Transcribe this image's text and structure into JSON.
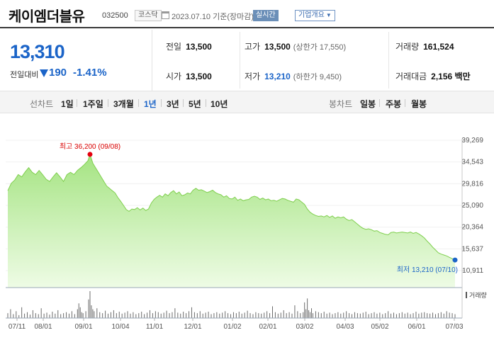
{
  "header": {
    "stock_name": "케이엠더블유",
    "stock_code": "032500",
    "market": "코스닥",
    "date_info": "2023.07.10 기준(장마감)",
    "realtime_label": "실시간",
    "company_info_label": "기업개요"
  },
  "price": {
    "current": "13,310",
    "change_label": "전일대비",
    "change_value": "190",
    "change_pct": "-1.41%",
    "direction": "down",
    "color": "#1b64c8"
  },
  "stats": {
    "prev_close": {
      "label": "전일",
      "value": "13,500"
    },
    "high": {
      "label": "고가",
      "value": "13,500",
      "limit": "(상한가 17,550)"
    },
    "volume": {
      "label": "거래량",
      "value": "161,524"
    },
    "open": {
      "label": "시가",
      "value": "13,500"
    },
    "low": {
      "label": "저가",
      "value": "13,210",
      "limit": "(하한가 9,450)"
    },
    "amount": {
      "label": "거래대금",
      "value": "2,156 백만"
    }
  },
  "tabs": {
    "line_label": "선차트",
    "line_periods": [
      "1일",
      "1주일",
      "3개월",
      "1년",
      "3년",
      "5년",
      "10년"
    ],
    "active_period": "1년",
    "candle_label": "봉차트",
    "candle_periods": [
      "일봉",
      "주봉",
      "월봉"
    ]
  },
  "chart_data": {
    "type": "area",
    "x_ticks": [
      "07/11",
      "08/01",
      "09/01",
      "10/04",
      "11/01",
      "12/01",
      "01/02",
      "02/01",
      "03/02",
      "04/03",
      "05/02",
      "06/01",
      "07/03"
    ],
    "y_ticks": [
      "39,269",
      "34,543",
      "29,816",
      "25,090",
      "20,364",
      "15,637",
      "10,911"
    ],
    "ylim": [
      10911,
      39269
    ],
    "max_annotation": "최고 36,200 (09/08)",
    "min_annotation": "최저 13,210 (07/10)",
    "max_value": 36200,
    "min_value": 13210,
    "volume_label": "거래량",
    "price_series": [
      [
        0,
        28300
      ],
      [
        5,
        29900
      ],
      [
        10,
        30600
      ],
      [
        15,
        31800
      ],
      [
        20,
        31300
      ],
      [
        25,
        32400
      ],
      [
        30,
        33300
      ],
      [
        35,
        32300
      ],
      [
        40,
        31800
      ],
      [
        45,
        32700
      ],
      [
        50,
        31800
      ],
      [
        55,
        30800
      ],
      [
        60,
        30300
      ],
      [
        65,
        31300
      ],
      [
        70,
        32200
      ],
      [
        75,
        31300
      ],
      [
        80,
        30300
      ],
      [
        85,
        31800
      ],
      [
        90,
        32300
      ],
      [
        95,
        31800
      ],
      [
        100,
        32700
      ],
      [
        105,
        33300
      ],
      [
        110,
        34000
      ],
      [
        115,
        34800
      ],
      [
        118,
        36200
      ],
      [
        122,
        34300
      ],
      [
        126,
        33300
      ],
      [
        130,
        32300
      ],
      [
        134,
        31300
      ],
      [
        138,
        30300
      ],
      [
        142,
        29300
      ],
      [
        146,
        28800
      ],
      [
        150,
        28300
      ],
      [
        154,
        27800
      ],
      [
        158,
        26800
      ],
      [
        162,
        26000
      ],
      [
        166,
        25100
      ],
      [
        170,
        24200
      ],
      [
        174,
        23800
      ],
      [
        178,
        24300
      ],
      [
        182,
        24200
      ],
      [
        186,
        24600
      ],
      [
        190,
        24100
      ],
      [
        194,
        24500
      ],
      [
        198,
        24000
      ],
      [
        202,
        24300
      ],
      [
        206,
        25600
      ],
      [
        210,
        26400
      ],
      [
        214,
        26900
      ],
      [
        218,
        27300
      ],
      [
        222,
        26900
      ],
      [
        226,
        27600
      ],
      [
        230,
        27200
      ],
      [
        234,
        27900
      ],
      [
        238,
        28300
      ],
      [
        242,
        27600
      ],
      [
        246,
        28000
      ],
      [
        250,
        27200
      ],
      [
        254,
        27400
      ],
      [
        258,
        27800
      ],
      [
        262,
        27600
      ],
      [
        266,
        28400
      ],
      [
        270,
        28800
      ],
      [
        274,
        28400
      ],
      [
        278,
        28500
      ],
      [
        282,
        28200
      ],
      [
        286,
        27900
      ],
      [
        290,
        28100
      ],
      [
        294,
        28400
      ],
      [
        298,
        27900
      ],
      [
        302,
        27600
      ],
      [
        306,
        27400
      ],
      [
        310,
        26900
      ],
      [
        314,
        27200
      ],
      [
        318,
        26600
      ],
      [
        322,
        26500
      ],
      [
        326,
        26900
      ],
      [
        330,
        26200
      ],
      [
        334,
        26500
      ],
      [
        338,
        26100
      ],
      [
        342,
        26300
      ],
      [
        346,
        26400
      ],
      [
        350,
        26900
      ],
      [
        354,
        27100
      ],
      [
        358,
        26900
      ],
      [
        362,
        26400
      ],
      [
        366,
        26700
      ],
      [
        370,
        26300
      ],
      [
        374,
        26500
      ],
      [
        378,
        26100
      ],
      [
        382,
        26200
      ],
      [
        386,
        26000
      ],
      [
        390,
        26300
      ],
      [
        394,
        26600
      ],
      [
        398,
        26500
      ],
      [
        402,
        26200
      ],
      [
        406,
        26000
      ],
      [
        410,
        25800
      ],
      [
        414,
        26500
      ],
      [
        418,
        26300
      ],
      [
        422,
        25800
      ],
      [
        426,
        25300
      ],
      [
        430,
        24300
      ],
      [
        434,
        23600
      ],
      [
        438,
        23200
      ],
      [
        442,
        22900
      ],
      [
        446,
        22700
      ],
      [
        450,
        22800
      ],
      [
        454,
        22600
      ],
      [
        458,
        22900
      ],
      [
        462,
        22500
      ],
      [
        466,
        22800
      ],
      [
        470,
        22300
      ],
      [
        474,
        22600
      ],
      [
        478,
        22400
      ],
      [
        482,
        22600
      ],
      [
        486,
        22100
      ],
      [
        490,
        21800
      ],
      [
        494,
        22000
      ],
      [
        498,
        21500
      ],
      [
        502,
        21000
      ],
      [
        506,
        20500
      ],
      [
        510,
        20100
      ],
      [
        514,
        19900
      ],
      [
        518,
        20000
      ],
      [
        522,
        19800
      ],
      [
        526,
        19500
      ],
      [
        530,
        19600
      ],
      [
        534,
        19200
      ],
      [
        538,
        19000
      ],
      [
        542,
        18800
      ],
      [
        546,
        18700
      ],
      [
        550,
        19200
      ],
      [
        554,
        19300
      ],
      [
        558,
        19100
      ],
      [
        562,
        19200
      ],
      [
        566,
        19300
      ],
      [
        570,
        19200
      ],
      [
        574,
        19100
      ],
      [
        578,
        19300
      ],
      [
        582,
        19000
      ],
      [
        586,
        19200
      ],
      [
        590,
        18900
      ],
      [
        594,
        18500
      ],
      [
        598,
        18000
      ],
      [
        602,
        17300
      ],
      [
        606,
        16700
      ],
      [
        610,
        16000
      ],
      [
        614,
        15400
      ],
      [
        618,
        14800
      ],
      [
        622,
        14500
      ],
      [
        626,
        14300
      ],
      [
        630,
        14100
      ],
      [
        634,
        13800
      ],
      [
        638,
        13500
      ],
      [
        642,
        13210
      ]
    ],
    "volume_series": [
      [
        0,
        10
      ],
      [
        4,
        18
      ],
      [
        8,
        8
      ],
      [
        12,
        14
      ],
      [
        16,
        6
      ],
      [
        20,
        22
      ],
      [
        24,
        9
      ],
      [
        28,
        12
      ],
      [
        32,
        7
      ],
      [
        36,
        16
      ],
      [
        40,
        10
      ],
      [
        44,
        8
      ],
      [
        48,
        20
      ],
      [
        52,
        9
      ],
      [
        56,
        11
      ],
      [
        60,
        7
      ],
      [
        64,
        13
      ],
      [
        68,
        9
      ],
      [
        72,
        16
      ],
      [
        76,
        8
      ],
      [
        80,
        10
      ],
      [
        84,
        12
      ],
      [
        88,
        9
      ],
      [
        92,
        14
      ],
      [
        96,
        8
      ],
      [
        100,
        18
      ],
      [
        102,
        30
      ],
      [
        104,
        22
      ],
      [
        106,
        12
      ],
      [
        108,
        10
      ],
      [
        112,
        14
      ],
      [
        116,
        38
      ],
      [
        118,
        55
      ],
      [
        120,
        26
      ],
      [
        122,
        18
      ],
      [
        124,
        14
      ],
      [
        128,
        20
      ],
      [
        132,
        12
      ],
      [
        136,
        10
      ],
      [
        140,
        15
      ],
      [
        144,
        9
      ],
      [
        148,
        12
      ],
      [
        152,
        16
      ],
      [
        156,
        10
      ],
      [
        160,
        13
      ],
      [
        164,
        9
      ],
      [
        168,
        11
      ],
      [
        172,
        14
      ],
      [
        176,
        9
      ],
      [
        180,
        12
      ],
      [
        184,
        8
      ],
      [
        188,
        10
      ],
      [
        192,
        13
      ],
      [
        196,
        8
      ],
      [
        200,
        11
      ],
      [
        204,
        16
      ],
      [
        208,
        10
      ],
      [
        212,
        14
      ],
      [
        216,
        12
      ],
      [
        220,
        9
      ],
      [
        224,
        11
      ],
      [
        228,
        15
      ],
      [
        232,
        10
      ],
      [
        236,
        12
      ],
      [
        240,
        20
      ],
      [
        244,
        11
      ],
      [
        248,
        9
      ],
      [
        252,
        13
      ],
      [
        256,
        10
      ],
      [
        260,
        14
      ],
      [
        264,
        22
      ],
      [
        268,
        12
      ],
      [
        272,
        10
      ],
      [
        276,
        14
      ],
      [
        280,
        9
      ],
      [
        284,
        11
      ],
      [
        288,
        13
      ],
      [
        292,
        8
      ],
      [
        296,
        10
      ],
      [
        300,
        12
      ],
      [
        304,
        9
      ],
      [
        308,
        11
      ],
      [
        312,
        14
      ],
      [
        316,
        10
      ],
      [
        320,
        8
      ],
      [
        324,
        12
      ],
      [
        328,
        10
      ],
      [
        332,
        13
      ],
      [
        336,
        9
      ],
      [
        340,
        11
      ],
      [
        344,
        15
      ],
      [
        348,
        10
      ],
      [
        352,
        8
      ],
      [
        356,
        12
      ],
      [
        360,
        10
      ],
      [
        364,
        9
      ],
      [
        368,
        11
      ],
      [
        372,
        14
      ],
      [
        376,
        10
      ],
      [
        380,
        24
      ],
      [
        384,
        12
      ],
      [
        388,
        9
      ],
      [
        392,
        11
      ],
      [
        396,
        16
      ],
      [
        400,
        10
      ],
      [
        404,
        12
      ],
      [
        408,
        9
      ],
      [
        412,
        26
      ],
      [
        416,
        14
      ],
      [
        420,
        10
      ],
      [
        424,
        12
      ],
      [
        426,
        32
      ],
      [
        428,
        18
      ],
      [
        430,
        40
      ],
      [
        432,
        16
      ],
      [
        434,
        12
      ],
      [
        436,
        20
      ],
      [
        438,
        10
      ],
      [
        442,
        14
      ],
      [
        446,
        12
      ],
      [
        450,
        10
      ],
      [
        454,
        13
      ],
      [
        458,
        9
      ],
      [
        462,
        11
      ],
      [
        466,
        8
      ],
      [
        470,
        10
      ],
      [
        474,
        12
      ],
      [
        478,
        9
      ],
      [
        482,
        11
      ],
      [
        486,
        14
      ],
      [
        490,
        10
      ],
      [
        494,
        8
      ],
      [
        498,
        12
      ],
      [
        502,
        10
      ],
      [
        506,
        9
      ],
      [
        510,
        11
      ],
      [
        514,
        13
      ],
      [
        518,
        8
      ],
      [
        522,
        10
      ],
      [
        526,
        12
      ],
      [
        530,
        9
      ],
      [
        534,
        11
      ],
      [
        538,
        8
      ],
      [
        542,
        10
      ],
      [
        546,
        14
      ],
      [
        550,
        9
      ],
      [
        554,
        11
      ],
      [
        558,
        8
      ],
      [
        562,
        10
      ],
      [
        566,
        12
      ],
      [
        570,
        9
      ],
      [
        574,
        11
      ],
      [
        578,
        8
      ],
      [
        582,
        10
      ],
      [
        586,
        13
      ],
      [
        590,
        9
      ],
      [
        594,
        11
      ],
      [
        598,
        12
      ],
      [
        602,
        10
      ],
      [
        606,
        9
      ],
      [
        610,
        11
      ],
      [
        614,
        8
      ],
      [
        618,
        10
      ],
      [
        622,
        12
      ],
      [
        626,
        9
      ],
      [
        630,
        14
      ],
      [
        634,
        11
      ],
      [
        638,
        10
      ],
      [
        642,
        8
      ]
    ]
  }
}
